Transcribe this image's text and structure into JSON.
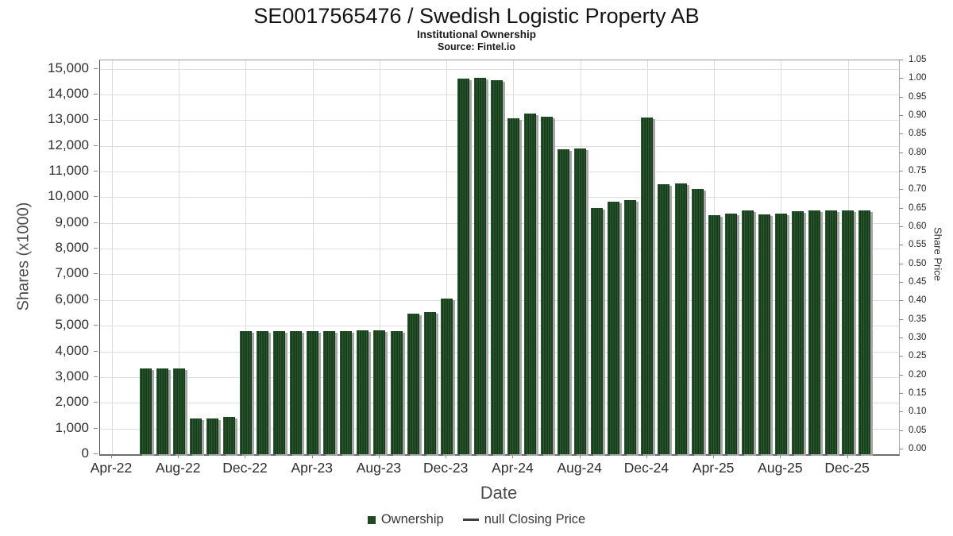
{
  "chart_data": {
    "type": "bar",
    "title": "SE0017565476 / Swedish Logistic Property AB",
    "subtitle": "Institutional Ownership",
    "source": "Source: Fintel.io",
    "xlabel": "Date",
    "ylabel": "Shares (x1000)",
    "y2label": "Share Price",
    "values_unit": "thousands of shares",
    "ylim": [
      0,
      15325
    ],
    "y_tick_step": 1000,
    "y_tick_max": 15000,
    "y2lim": [
      0,
      1.05
    ],
    "y2_tick_step": 0.05,
    "grid": true,
    "legend_position": "bottom",
    "bar_color": "#1d4421",
    "bar_shadow_color": "#a6a6a6",
    "x_tick_labels": [
      "Apr-22",
      "Aug-22",
      "Dec-22",
      "Apr-23",
      "Aug-23",
      "Dec-23",
      "Apr-24",
      "Aug-24",
      "Dec-24",
      "Apr-25",
      "Aug-25",
      "Dec-25"
    ],
    "categories": [
      "Jun-22",
      "Jul-22",
      "Aug-22",
      "Sep-22",
      "Oct-22",
      "Nov-22",
      "Dec-22",
      "Jan-23",
      "Feb-23",
      "Mar-23",
      "Apr-23",
      "May-23",
      "Jun-23",
      "Jul-23",
      "Aug-23",
      "Sep-23",
      "Oct-23",
      "Nov-23",
      "Dec-23",
      "Jan-24",
      "Feb-24",
      "Mar-24",
      "Apr-24",
      "May-24",
      "Jun-24",
      "Jul-24",
      "Aug-24",
      "Sep-24",
      "Oct-24",
      "Nov-24",
      "Dec-24",
      "Jan-25",
      "Feb-25",
      "Mar-25",
      "Apr-25",
      "May-25",
      "Jun-25",
      "Jul-25",
      "Aug-25",
      "Sep-25",
      "Oct-25",
      "Nov-25",
      "Dec-25",
      "Jan-26"
    ],
    "series": [
      {
        "name": "Ownership",
        "values": [
          3340,
          3340,
          3340,
          1400,
          1400,
          1440,
          4780,
          4780,
          4780,
          4780,
          4780,
          4780,
          4780,
          4810,
          4810,
          4800,
          5460,
          5520,
          6060,
          14620,
          14650,
          14540,
          13060,
          13240,
          13140,
          11880,
          11890,
          9590,
          9830,
          9880,
          13100,
          10520,
          10540,
          10330,
          9300,
          9360,
          9480,
          9330,
          9350,
          9460,
          9490,
          9490,
          9490,
          9490
        ]
      },
      {
        "name": "null Closing Price",
        "values": []
      }
    ],
    "legend": [
      {
        "marker": "square",
        "color": "#1e4a23",
        "label": "Ownership"
      },
      {
        "marker": "line",
        "color": "#3f3f3f",
        "label": "null Closing Price"
      }
    ]
  }
}
